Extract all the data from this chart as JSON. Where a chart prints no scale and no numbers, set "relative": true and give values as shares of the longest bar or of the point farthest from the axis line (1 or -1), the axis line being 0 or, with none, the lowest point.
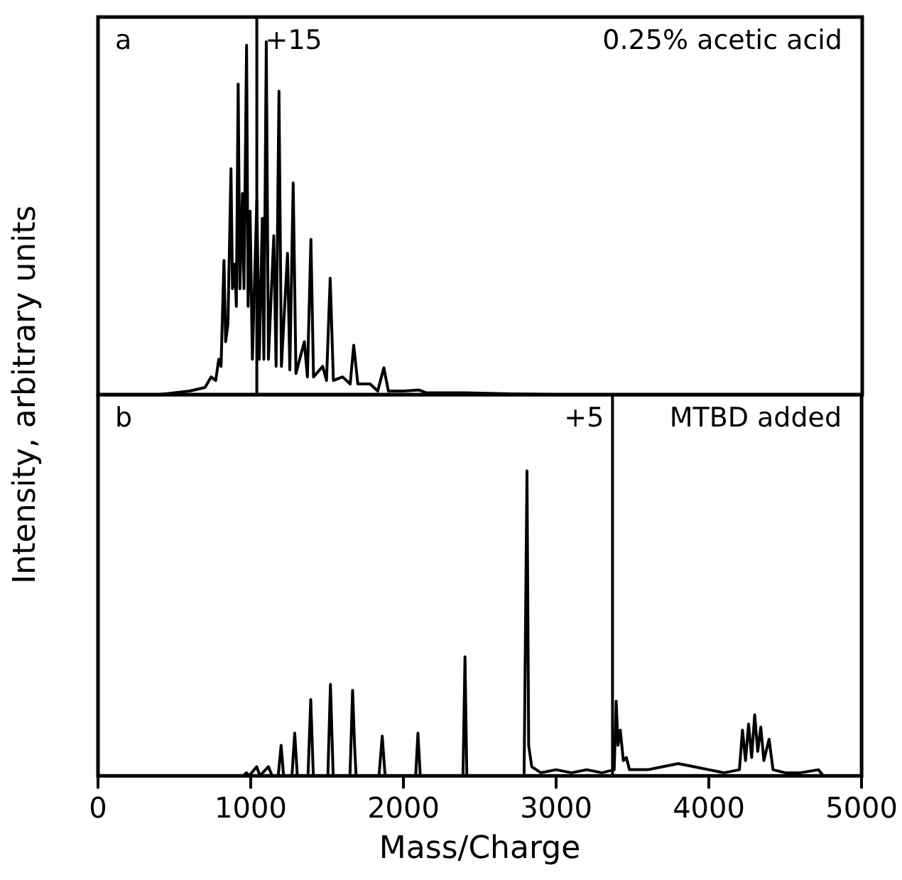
{
  "chart_data": [
    {
      "type": "line",
      "relative": true,
      "ylabel": "Intensity, arbitrary units",
      "xlim": [
        0,
        5000
      ],
      "tick_labels": false,
      "series": [
        {
          "color": "#000000",
          "x": [
            0,
            400,
            500,
            600,
            700,
            740,
            770,
            790,
            805,
            824,
            835,
            850,
            870,
            880,
            895,
            905,
            917,
            928,
            945,
            955,
            972,
            982,
            995,
            1010,
            1039,
            1055,
            1075,
            1085,
            1101,
            1115,
            1150,
            1165,
            1184,
            1200,
            1240,
            1255,
            1277,
            1295,
            1350,
            1370,
            1393,
            1410,
            1470,
            1495,
            1519,
            1540,
            1600,
            1650,
            1673,
            1700,
            1780,
            1830,
            1870,
            1900,
            2000,
            2101,
            2150,
            2400,
            2700,
            3000,
            5000
          ],
          "values": [
            0,
            0,
            0.005,
            0.01,
            0.02,
            0.05,
            0.04,
            0.1,
            0.08,
            0.38,
            0.15,
            0.2,
            0.64,
            0.3,
            0.37,
            0.25,
            0.88,
            0.3,
            0.57,
            0.3,
            0.99,
            0.25,
            0.52,
            0.1,
            0.55,
            0.1,
            0.5,
            0.1,
            1,
            0.1,
            0.45,
            0.08,
            0.86,
            0.08,
            0.4,
            0.07,
            0.6,
            0.06,
            0.15,
            0.05,
            0.44,
            0.05,
            0.08,
            0.04,
            0.33,
            0.04,
            0.05,
            0.03,
            0.14,
            0.03,
            0.03,
            0.01,
            0.076,
            0.01,
            0.01,
            0.013,
            0.005,
            0.005,
            0.002,
            0,
            0
          ]
        }
      ],
      "ref_lines": [
        {
          "axis": "x",
          "value": 1039
        }
      ],
      "annotations": [
        "a",
        "0.25% acetic acid",
        {
          "text": "+15",
          "x": 1039
        }
      ]
    },
    {
      "type": "line",
      "relative": true,
      "xlabel": "Mass/Charge",
      "xlim": [
        0,
        5000
      ],
      "xticks": [
        0,
        1000,
        2000,
        3000,
        4000,
        5000
      ],
      "tick_labels": "x",
      "series": [
        {
          "color": "#000000",
          "x": [
            0,
            950,
            972,
            990,
            1039,
            1060,
            1116,
            1140,
            1180,
            1199,
            1215,
            1270,
            1288,
            1305,
            1375,
            1393,
            1410,
            1505,
            1522,
            1540,
            1650,
            1667,
            1680,
            1690,
            1840,
            1861,
            1880,
            2080,
            2095,
            2110,
            2390,
            2403,
            2415,
            2790,
            2809,
            2820,
            2840,
            2900,
            3000,
            3100,
            3200,
            3300,
            3380,
            3393,
            3405,
            3420,
            3440,
            3460,
            3480,
            3600,
            3700,
            3800,
            3900,
            4000,
            4100,
            4200,
            4220,
            4240,
            4260,
            4280,
            4300,
            4320,
            4340,
            4360,
            4394,
            4420,
            4500,
            4600,
            4717,
            4750,
            5000
          ],
          "values": [
            0,
            0,
            0.01,
            0,
            0.03,
            0,
            0.03,
            0,
            0,
            0.1,
            0,
            0,
            0.14,
            0,
            0,
            0.25,
            0,
            0,
            0.3,
            0,
            0,
            0.28,
            0.1,
            0,
            0,
            0.13,
            0,
            0,
            0.14,
            0,
            0,
            0.39,
            0,
            0,
            1,
            0.1,
            0.03,
            0.01,
            0.02,
            0.01,
            0.02,
            0.01,
            0.02,
            0.245,
            0.1,
            0.15,
            0.05,
            0.06,
            0.02,
            0.02,
            0.03,
            0.04,
            0.03,
            0.02,
            0.01,
            0.02,
            0.15,
            0.05,
            0.17,
            0.06,
            0.2,
            0.08,
            0.16,
            0.05,
            0.12,
            0.02,
            0.01,
            0.01,
            0.02,
            0,
            0
          ]
        }
      ],
      "ref_lines": [
        {
          "axis": "x",
          "value": 3369
        }
      ],
      "annotations": [
        "b",
        "MTBD added",
        {
          "text": "+5",
          "x": 3369
        }
      ]
    }
  ]
}
